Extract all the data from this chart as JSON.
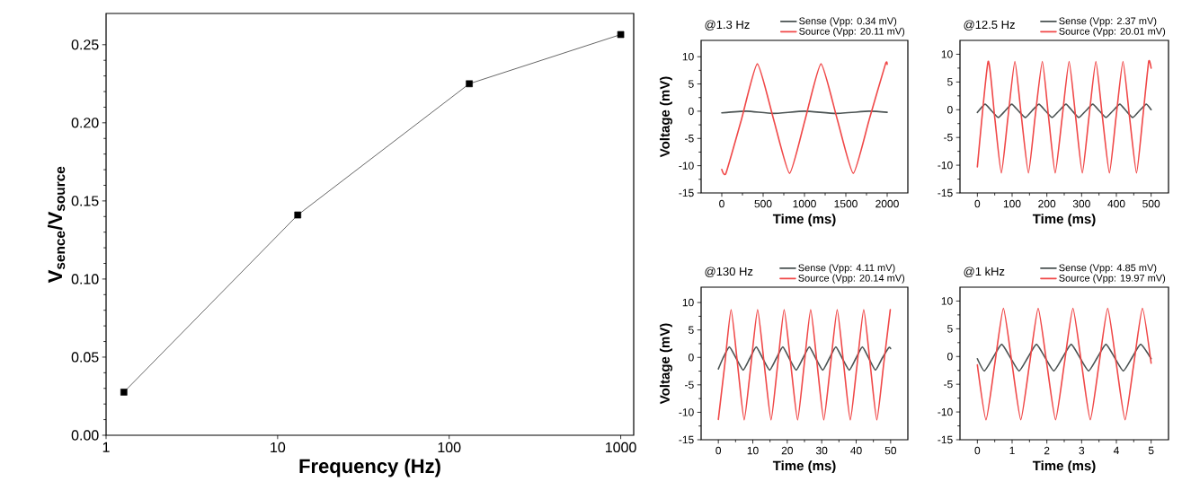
{
  "chart_data": [
    {
      "type": "line",
      "xlabel": "Frequency (Hz)",
      "ylabel": "V$_{sence}$/V$_{source}$",
      "log": "x",
      "marker": "square",
      "xlim": [
        1,
        1190
      ],
      "ylim": [
        0,
        0.27
      ],
      "xticks": [
        1,
        10,
        100,
        1000
      ],
      "yticks": [
        {
          "value": 0,
          "label": "0.00"
        },
        {
          "value": 0.05,
          "label": "0.05"
        },
        {
          "value": 0.1,
          "label": "0.10"
        },
        {
          "value": 0.15,
          "label": "0.15"
        },
        {
          "value": 0.2,
          "label": "0.20"
        },
        {
          "value": 0.25,
          "label": "0.25"
        }
      ],
      "series": [
        {
          "color": "#000000",
          "x": [
            1.27,
            13.1,
            131,
            1000
          ],
          "values": [
            0.0276,
            0.141,
            0.225,
            0.2565
          ]
        }
      ]
    },
    {
      "type": "line",
      "title": "@1.3 Hz",
      "xlabel": "Time (ms)",
      "ylabel": "Voltage (mV)",
      "marker": "none",
      "legend": "top right",
      "xlim": [
        -250,
        2250
      ],
      "ylim": [
        -15,
        13
      ],
      "xticks": [
        0,
        500,
        1000,
        1500,
        2000
      ],
      "yticks": [
        -15,
        -10,
        -5,
        0,
        5,
        10
      ],
      "series": [
        {
          "name": "Sense (Vpp: 0.34 mV)",
          "color": "#4a5252",
          "x": [
            0,
            300,
            620,
            1000,
            1380,
            1780,
            2000
          ],
          "values": [
            -0.3,
            0,
            -0.4,
            0,
            -0.4,
            0,
            -0.2
          ]
        },
        {
          "name": "Source (Vpp: 20.11 mV)",
          "color": "#f04848",
          "x": [
            0,
            50,
            240,
            430,
            625,
            820,
            1010,
            1200,
            1395,
            1590,
            1785,
            1980,
            2000
          ],
          "values": [
            -10.7,
            -11.4,
            -1.4,
            8.7,
            -1.4,
            -11.4,
            -1.4,
            8.7,
            -1.4,
            -11.4,
            -1.4,
            8.7,
            8.6
          ]
        }
      ]
    },
    {
      "type": "line",
      "title": "@12.5 Hz",
      "xlabel": "Time (ms)",
      "marker": "none",
      "legend": "top right",
      "xlim": [
        -50,
        550
      ],
      "ylim": [
        -15,
        12.5
      ],
      "xticks": [
        0,
        100,
        200,
        300,
        400,
        500
      ],
      "yticks": [
        -15,
        -10,
        -5,
        0,
        5,
        10
      ],
      "series": [
        {
          "name": "Sense (Vpp: 2.37 mV)",
          "color": "#4a5252",
          "x": [
            0,
            22,
            41,
            60,
            80,
            99,
            118,
            138,
            157,
            177,
            196,
            215,
            235,
            255,
            273,
            292,
            312,
            332,
            351,
            370,
            390,
            410,
            428,
            447,
            466,
            486,
            500
          ],
          "values": [
            -0.5,
            1.0,
            -0.2,
            -1.4,
            -0.2,
            1.0,
            -0.2,
            -1.4,
            -0.2,
            1.0,
            -0.2,
            -1.4,
            -0.2,
            1.0,
            -0.2,
            -1.4,
            -0.2,
            1.0,
            -0.2,
            -1.4,
            -0.2,
            1.0,
            -0.2,
            -1.4,
            -0.2,
            1.0,
            0
          ]
        },
        {
          "name": "Source (Vpp: 20.01 mV)",
          "color": "#f04848",
          "x": [
            0,
            31,
            50,
            69,
            88,
            108,
            127,
            147,
            166,
            187,
            205,
            224,
            244,
            264,
            283,
            302,
            321,
            341,
            360,
            380,
            399,
            419,
            438,
            458,
            476,
            493,
            500
          ],
          "values": [
            -10.3,
            8.7,
            -1.4,
            -11.4,
            -1.4,
            8.7,
            -1.4,
            -11.4,
            -1.4,
            8.7,
            -1.4,
            -11.4,
            -1.4,
            8.7,
            -1.4,
            -11.4,
            -1.4,
            8.7,
            -1.4,
            -11.4,
            -1.4,
            8.7,
            -1.4,
            -11.4,
            -1.4,
            8.7,
            7.5
          ]
        }
      ]
    },
    {
      "type": "line",
      "title": "@130 Hz",
      "xlabel": "Time (ms)",
      "ylabel": "Voltage (mV)",
      "marker": "none",
      "legend": "top right",
      "xlim": [
        -5,
        55
      ],
      "ylim": [
        -15,
        12.8
      ],
      "xticks": [
        0,
        10,
        20,
        30,
        40,
        50
      ],
      "yticks": [
        -15,
        -10,
        -5,
        0,
        5,
        10
      ],
      "series": [
        {
          "name": "Sense (Vpp: 4.11 mV)",
          "color": "#4a5252",
          "x": [
            0,
            1.3,
            3.2,
            5.2,
            7.2,
            9.1,
            11.0,
            12.9,
            14.9,
            16.8,
            18.7,
            20.6,
            22.6,
            24.5,
            26.4,
            28.3,
            30.3,
            32.2,
            34.1,
            36.0,
            38.0,
            39.9,
            41.8,
            43.7,
            45.6,
            47.5,
            49.5,
            50
          ],
          "values": [
            -2.1,
            -0.2,
            1.9,
            -0.2,
            -2.3,
            -0.2,
            1.9,
            -0.2,
            -2.3,
            -0.2,
            1.9,
            -0.2,
            -2.3,
            -0.2,
            1.9,
            -0.2,
            -2.3,
            -0.2,
            1.9,
            -0.2,
            -2.3,
            -0.2,
            1.9,
            -0.2,
            -2.3,
            -0.2,
            1.8,
            1.6
          ]
        },
        {
          "name": "Source (Vpp: 20.14 mV)",
          "color": "#f04848",
          "x": [
            0,
            1.85,
            3.7,
            5.6,
            7.5,
            9.45,
            11.4,
            13.35,
            15.3,
            17.2,
            19.1,
            21.05,
            23.0,
            24.9,
            26.8,
            28.7,
            30.6,
            32.55,
            34.5,
            36.4,
            38.3,
            40.25,
            42.2,
            44.1,
            46.0,
            47.95,
            49.9
          ],
          "values": [
            -11.3,
            -1.4,
            8.7,
            -1.4,
            -11.4,
            -1.4,
            8.7,
            -1.4,
            -11.4,
            -1.4,
            8.7,
            -1.4,
            -11.4,
            -1.4,
            8.7,
            -1.4,
            -11.4,
            -1.4,
            8.7,
            -1.4,
            -11.4,
            -1.4,
            8.7,
            -1.4,
            -11.4,
            -1.4,
            8.7
          ]
        }
      ]
    },
    {
      "type": "line",
      "title": "@1 kHz",
      "xlabel": "Time (ms)",
      "marker": "none",
      "legend": "top right",
      "xlim": [
        -0.5,
        5.5
      ],
      "ylim": [
        -15,
        12.5
      ],
      "xticks": [
        0,
        1,
        2,
        3,
        4,
        5
      ],
      "yticks": [
        -15,
        -10,
        -5,
        0,
        5,
        10
      ],
      "series": [
        {
          "name": "Sense (Vpp: 4.85 mV)",
          "color": "#4a5252",
          "x": [
            0,
            0.2,
            0.45,
            0.7,
            0.95,
            1.2,
            1.45,
            1.7,
            1.95,
            2.2,
            2.45,
            2.7,
            2.95,
            3.2,
            3.45,
            3.7,
            3.95,
            4.2,
            4.45,
            4.7,
            5
          ],
          "values": [
            -0.4,
            -2.6,
            -0.2,
            2.2,
            -0.2,
            -2.6,
            -0.2,
            2.2,
            -0.2,
            -2.6,
            -0.2,
            2.2,
            -0.2,
            -2.6,
            -0.2,
            2.2,
            -0.2,
            -2.6,
            -0.2,
            2.2,
            -0.4
          ]
        },
        {
          "name": "Source (Vpp: 19.97 mV)",
          "color": "#f04848",
          "x": [
            0,
            0.25,
            0.5,
            0.75,
            1.0,
            1.25,
            1.5,
            1.75,
            2.0,
            2.25,
            2.5,
            2.75,
            3.0,
            3.25,
            3.5,
            3.75,
            4.0,
            4.25,
            4.5,
            4.75,
            5
          ],
          "values": [
            -1.5,
            -11.4,
            -1.4,
            8.7,
            -1.4,
            -11.4,
            -1.4,
            8.7,
            -1.4,
            -11.4,
            -1.4,
            8.7,
            -1.4,
            -11.4,
            -1.4,
            8.7,
            -1.4,
            -11.4,
            -1.4,
            8.7,
            -1.2
          ]
        }
      ]
    }
  ]
}
